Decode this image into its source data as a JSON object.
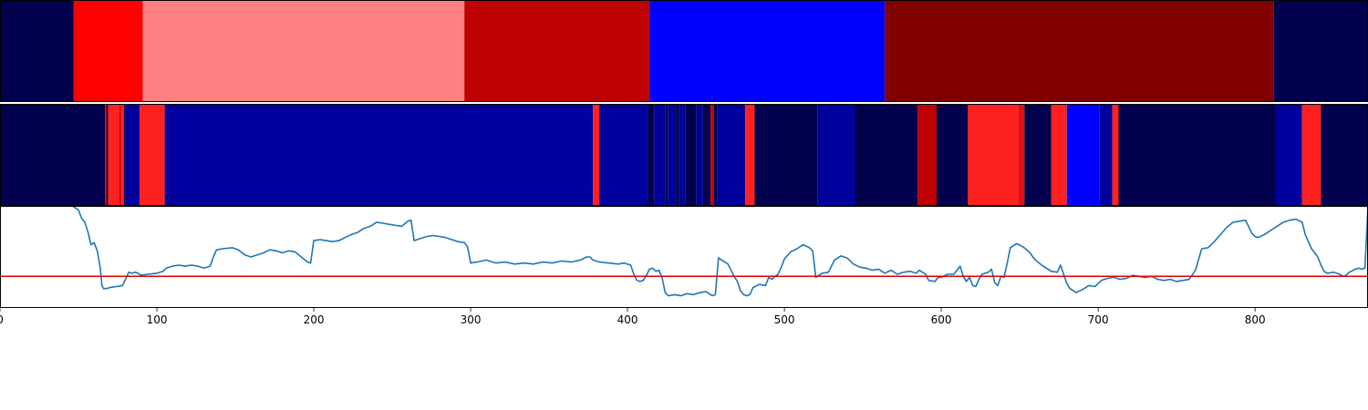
{
  "chart_data": [
    {
      "type": "heatmap",
      "row": "top",
      "xlim": [
        0,
        872
      ],
      "segments": [
        {
          "start": 0,
          "end": 47,
          "color": "#00004c"
        },
        {
          "start": 47,
          "end": 91,
          "color": "#ff0000"
        },
        {
          "start": 91,
          "end": 296,
          "color": "#ff8080"
        },
        {
          "start": 296,
          "end": 414,
          "color": "#bf0000"
        },
        {
          "start": 414,
          "end": 564,
          "color": "#0000ff"
        },
        {
          "start": 564,
          "end": 812,
          "color": "#800000"
        },
        {
          "start": 812,
          "end": 872,
          "color": "#00004c"
        }
      ]
    },
    {
      "type": "heatmap",
      "row": "middle",
      "xlim": [
        0,
        872
      ],
      "segments": [
        {
          "start": 0,
          "end": 67,
          "color": "#00004c"
        },
        {
          "start": 67,
          "end": 68,
          "color": "#bf0000"
        },
        {
          "start": 68,
          "end": 69,
          "color": "#00004c"
        },
        {
          "start": 69,
          "end": 76,
          "color": "#ff2020"
        },
        {
          "start": 76,
          "end": 77,
          "color": "#bf0000"
        },
        {
          "start": 77,
          "end": 79,
          "color": "#ff2020"
        },
        {
          "start": 79,
          "end": 80,
          "color": "#00004c"
        },
        {
          "start": 80,
          "end": 89,
          "color": "#00009c"
        },
        {
          "start": 89,
          "end": 105,
          "color": "#ff2020"
        },
        {
          "start": 105,
          "end": 378,
          "color": "#00009c"
        },
        {
          "start": 378,
          "end": 382,
          "color": "#ff2020"
        },
        {
          "start": 382,
          "end": 413,
          "color": "#00009c"
        },
        {
          "start": 413,
          "end": 417,
          "color": "#00004c"
        },
        {
          "start": 417,
          "end": 424,
          "color": "#00009c"
        },
        {
          "start": 424,
          "end": 426,
          "color": "#00004c"
        },
        {
          "start": 426,
          "end": 431,
          "color": "#00009c"
        },
        {
          "start": 431,
          "end": 433,
          "color": "#00004c"
        },
        {
          "start": 433,
          "end": 437,
          "color": "#00009c"
        },
        {
          "start": 437,
          "end": 444,
          "color": "#00004c"
        },
        {
          "start": 444,
          "end": 448,
          "color": "#00009c"
        },
        {
          "start": 448,
          "end": 453,
          "color": "#00004c"
        },
        {
          "start": 453,
          "end": 455,
          "color": "#bf0000"
        },
        {
          "start": 455,
          "end": 457,
          "color": "#00004c"
        },
        {
          "start": 457,
          "end": 475,
          "color": "#00009c"
        },
        {
          "start": 475,
          "end": 481,
          "color": "#ff2020"
        },
        {
          "start": 481,
          "end": 521,
          "color": "#00004c"
        },
        {
          "start": 521,
          "end": 545,
          "color": "#00009c"
        },
        {
          "start": 545,
          "end": 585,
          "color": "#00004c"
        },
        {
          "start": 585,
          "end": 597,
          "color": "#bf0000"
        },
        {
          "start": 597,
          "end": 617,
          "color": "#00004c"
        },
        {
          "start": 617,
          "end": 649,
          "color": "#ff2020"
        },
        {
          "start": 649,
          "end": 653,
          "color": "#e01010"
        },
        {
          "start": 653,
          "end": 670,
          "color": "#00004c"
        },
        {
          "start": 670,
          "end": 680,
          "color": "#ff2020"
        },
        {
          "start": 680,
          "end": 701,
          "color": "#0000ff"
        },
        {
          "start": 701,
          "end": 709,
          "color": "#00009c"
        },
        {
          "start": 709,
          "end": 713,
          "color": "#ff2020"
        },
        {
          "start": 713,
          "end": 813,
          "color": "#00004c"
        },
        {
          "start": 813,
          "end": 830,
          "color": "#00009c"
        },
        {
          "start": 830,
          "end": 842,
          "color": "#ff2020"
        },
        {
          "start": 842,
          "end": 872,
          "color": "#00004c"
        }
      ]
    },
    {
      "type": "line",
      "row": "bottom",
      "xlim": [
        0,
        872
      ],
      "ylim": [
        0,
        1
      ],
      "line_color": "#1f77b4",
      "threshold": {
        "y": 0.31,
        "color": "#e00000"
      },
      "xticks": [
        0,
        100,
        200,
        300,
        400,
        500,
        600,
        700,
        800
      ],
      "xtick_labels": [
        "0",
        "100",
        "200",
        "300",
        "400",
        "500",
        "600",
        "700",
        "800"
      ],
      "points": [
        [
          40,
          1.0
        ],
        [
          46,
          1.0
        ],
        [
          48,
          0.98
        ],
        [
          50,
          0.96
        ],
        [
          52,
          0.88
        ],
        [
          54,
          0.84
        ],
        [
          56,
          0.75
        ],
        [
          58,
          0.62
        ],
        [
          60,
          0.64
        ],
        [
          62,
          0.56
        ],
        [
          64,
          0.38
        ],
        [
          65,
          0.22
        ],
        [
          66,
          0.19
        ],
        [
          68,
          0.19
        ],
        [
          70,
          0.2
        ],
        [
          74,
          0.21
        ],
        [
          78,
          0.22
        ],
        [
          80,
          0.28
        ],
        [
          82,
          0.35
        ],
        [
          84,
          0.34
        ],
        [
          86,
          0.35
        ],
        [
          88,
          0.34
        ],
        [
          90,
          0.32
        ],
        [
          94,
          0.33
        ],
        [
          100,
          0.34
        ],
        [
          104,
          0.36
        ],
        [
          106,
          0.39
        ],
        [
          110,
          0.41
        ],
        [
          114,
          0.42
        ],
        [
          118,
          0.41
        ],
        [
          122,
          0.42
        ],
        [
          126,
          0.41
        ],
        [
          130,
          0.39
        ],
        [
          134,
          0.41
        ],
        [
          136,
          0.5
        ],
        [
          138,
          0.57
        ],
        [
          142,
          0.58
        ],
        [
          148,
          0.59
        ],
        [
          152,
          0.57
        ],
        [
          156,
          0.52
        ],
        [
          160,
          0.5
        ],
        [
          164,
          0.52
        ],
        [
          168,
          0.54
        ],
        [
          172,
          0.57
        ],
        [
          176,
          0.56
        ],
        [
          180,
          0.54
        ],
        [
          184,
          0.56
        ],
        [
          188,
          0.55
        ],
        [
          192,
          0.5
        ],
        [
          196,
          0.45
        ],
        [
          198,
          0.44
        ],
        [
          200,
          0.66
        ],
        [
          204,
          0.67
        ],
        [
          208,
          0.66
        ],
        [
          212,
          0.65
        ],
        [
          216,
          0.66
        ],
        [
          220,
          0.69
        ],
        [
          224,
          0.72
        ],
        [
          228,
          0.74
        ],
        [
          232,
          0.78
        ],
        [
          236,
          0.8
        ],
        [
          240,
          0.84
        ],
        [
          244,
          0.83
        ],
        [
          248,
          0.82
        ],
        [
          252,
          0.81
        ],
        [
          256,
          0.8
        ],
        [
          260,
          0.85
        ],
        [
          262,
          0.86
        ],
        [
          264,
          0.66
        ],
        [
          268,
          0.68
        ],
        [
          272,
          0.7
        ],
        [
          276,
          0.71
        ],
        [
          280,
          0.7
        ],
        [
          284,
          0.69
        ],
        [
          288,
          0.67
        ],
        [
          292,
          0.65
        ],
        [
          296,
          0.64
        ],
        [
          298,
          0.6
        ],
        [
          300,
          0.44
        ],
        [
          304,
          0.45
        ],
        [
          310,
          0.47
        ],
        [
          316,
          0.44
        ],
        [
          322,
          0.45
        ],
        [
          328,
          0.43
        ],
        [
          334,
          0.44
        ],
        [
          340,
          0.43
        ],
        [
          346,
          0.45
        ],
        [
          352,
          0.44
        ],
        [
          358,
          0.46
        ],
        [
          364,
          0.45
        ],
        [
          370,
          0.47
        ],
        [
          374,
          0.5
        ],
        [
          376,
          0.5
        ],
        [
          378,
          0.47
        ],
        [
          382,
          0.45
        ],
        [
          388,
          0.44
        ],
        [
          394,
          0.43
        ],
        [
          398,
          0.44
        ],
        [
          402,
          0.42
        ],
        [
          404,
          0.33
        ],
        [
          406,
          0.27
        ],
        [
          408,
          0.26
        ],
        [
          410,
          0.27
        ],
        [
          412,
          0.32
        ],
        [
          414,
          0.38
        ],
        [
          416,
          0.39
        ],
        [
          418,
          0.36
        ],
        [
          420,
          0.37
        ],
        [
          422,
          0.3
        ],
        [
          424,
          0.15
        ],
        [
          426,
          0.12
        ],
        [
          430,
          0.13
        ],
        [
          434,
          0.12
        ],
        [
          438,
          0.14
        ],
        [
          442,
          0.13
        ],
        [
          446,
          0.15
        ],
        [
          450,
          0.16
        ],
        [
          452,
          0.14
        ],
        [
          454,
          0.12
        ],
        [
          456,
          0.13
        ],
        [
          458,
          0.49
        ],
        [
          460,
          0.47
        ],
        [
          464,
          0.43
        ],
        [
          468,
          0.31
        ],
        [
          470,
          0.26
        ],
        [
          472,
          0.17
        ],
        [
          474,
          0.13
        ],
        [
          476,
          0.12
        ],
        [
          478,
          0.13
        ],
        [
          480,
          0.2
        ],
        [
          484,
          0.23
        ],
        [
          488,
          0.22
        ],
        [
          490,
          0.3
        ],
        [
          492,
          0.28
        ],
        [
          494,
          0.31
        ],
        [
          496,
          0.33
        ],
        [
          498,
          0.4
        ],
        [
          500,
          0.48
        ],
        [
          504,
          0.55
        ],
        [
          508,
          0.58
        ],
        [
          512,
          0.62
        ],
        [
          516,
          0.59
        ],
        [
          518,
          0.56
        ],
        [
          520,
          0.3
        ],
        [
          524,
          0.34
        ],
        [
          528,
          0.35
        ],
        [
          532,
          0.47
        ],
        [
          536,
          0.51
        ],
        [
          540,
          0.49
        ],
        [
          544,
          0.43
        ],
        [
          548,
          0.4
        ],
        [
          552,
          0.39
        ],
        [
          556,
          0.37
        ],
        [
          560,
          0.38
        ],
        [
          564,
          0.34
        ],
        [
          568,
          0.37
        ],
        [
          572,
          0.33
        ],
        [
          576,
          0.35
        ],
        [
          580,
          0.36
        ],
        [
          584,
          0.34
        ],
        [
          586,
          0.37
        ],
        [
          588,
          0.35
        ],
        [
          590,
          0.33
        ],
        [
          592,
          0.27
        ],
        [
          596,
          0.26
        ],
        [
          598,
          0.3
        ],
        [
          600,
          0.3
        ],
        [
          604,
          0.33
        ],
        [
          608,
          0.33
        ],
        [
          612,
          0.41
        ],
        [
          614,
          0.31
        ],
        [
          616,
          0.26
        ],
        [
          618,
          0.3
        ],
        [
          620,
          0.22
        ],
        [
          622,
          0.21
        ],
        [
          624,
          0.28
        ],
        [
          626,
          0.33
        ],
        [
          630,
          0.35
        ],
        [
          632,
          0.38
        ],
        [
          634,
          0.25
        ],
        [
          636,
          0.22
        ],
        [
          638,
          0.31
        ],
        [
          640,
          0.3
        ],
        [
          642,
          0.44
        ],
        [
          644,
          0.59
        ],
        [
          648,
          0.63
        ],
        [
          652,
          0.6
        ],
        [
          656,
          0.55
        ],
        [
          660,
          0.47
        ],
        [
          664,
          0.42
        ],
        [
          668,
          0.38
        ],
        [
          670,
          0.36
        ],
        [
          674,
          0.35
        ],
        [
          676,
          0.42
        ],
        [
          678,
          0.33
        ],
        [
          680,
          0.24
        ],
        [
          682,
          0.19
        ],
        [
          686,
          0.15
        ],
        [
          690,
          0.18
        ],
        [
          694,
          0.22
        ],
        [
          698,
          0.21
        ],
        [
          702,
          0.27
        ],
        [
          706,
          0.29
        ],
        [
          710,
          0.3
        ],
        [
          714,
          0.28
        ],
        [
          718,
          0.29
        ],
        [
          722,
          0.32
        ],
        [
          726,
          0.31
        ],
        [
          730,
          0.3
        ],
        [
          734,
          0.31
        ],
        [
          738,
          0.28
        ],
        [
          742,
          0.27
        ],
        [
          746,
          0.28
        ],
        [
          750,
          0.26
        ],
        [
          754,
          0.27
        ],
        [
          758,
          0.28
        ],
        [
          762,
          0.37
        ],
        [
          766,
          0.58
        ],
        [
          770,
          0.59
        ],
        [
          774,
          0.65
        ],
        [
          778,
          0.72
        ],
        [
          782,
          0.79
        ],
        [
          786,
          0.84
        ],
        [
          790,
          0.85
        ],
        [
          794,
          0.86
        ],
        [
          798,
          0.73
        ],
        [
          800,
          0.7
        ],
        [
          802,
          0.69
        ],
        [
          806,
          0.72
        ],
        [
          810,
          0.76
        ],
        [
          814,
          0.8
        ],
        [
          818,
          0.84
        ],
        [
          822,
          0.86
        ],
        [
          826,
          0.87
        ],
        [
          830,
          0.84
        ],
        [
          832,
          0.72
        ],
        [
          836,
          0.58
        ],
        [
          840,
          0.5
        ],
        [
          842,
          0.42
        ],
        [
          844,
          0.36
        ],
        [
          846,
          0.34
        ],
        [
          850,
          0.35
        ],
        [
          854,
          0.33
        ],
        [
          856,
          0.31
        ],
        [
          858,
          0.32
        ],
        [
          860,
          0.35
        ],
        [
          864,
          0.38
        ],
        [
          866,
          0.39
        ],
        [
          868,
          0.38
        ],
        [
          870,
          0.39
        ],
        [
          872,
          1.0
        ]
      ]
    }
  ]
}
